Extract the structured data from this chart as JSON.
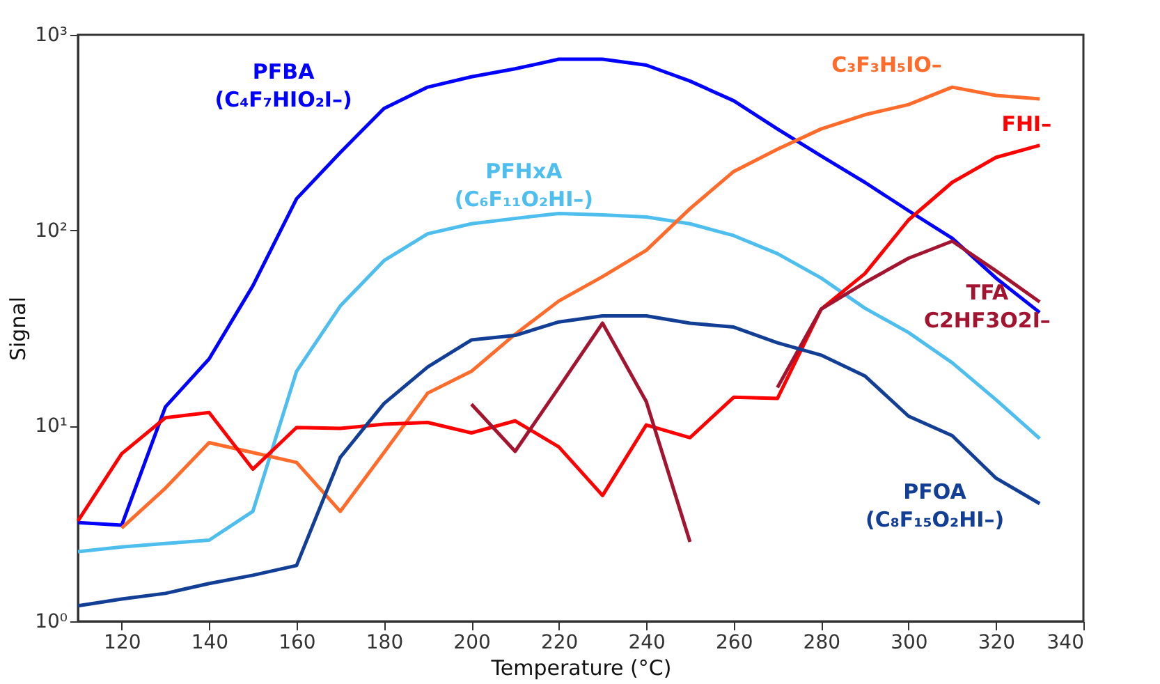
{
  "chart_data": {
    "type": "line",
    "xlabel": "Temperature (°C)",
    "ylabel": "Signal",
    "log": "y",
    "grid": false,
    "line_style": "solid",
    "marker": "none",
    "xlim": [
      110,
      340
    ],
    "xticks": [
      120,
      140,
      160,
      180,
      200,
      220,
      240,
      260,
      280,
      300,
      320,
      340
    ],
    "ylim": [
      1,
      1000
    ],
    "yticks": [
      {
        "value": 1,
        "label": "10⁰"
      },
      {
        "value": 10,
        "label": "10¹"
      },
      {
        "value": 100,
        "label": "10²"
      },
      {
        "value": 1000,
        "label": "10³"
      }
    ],
    "x": [
      110,
      120,
      130,
      140,
      150,
      160,
      170,
      180,
      190,
      200,
      210,
      220,
      230,
      240,
      250,
      260,
      270,
      280,
      290,
      300,
      310,
      320,
      330
    ],
    "series": [
      {
        "name": "PFBA (C₄F₇HIO₂I–)",
        "color": "#0000ff",
        "values": [
          3.2,
          3.1,
          12.5,
          22,
          52,
          145,
          250,
          420,
          540,
          610,
          670,
          750,
          750,
          700,
          580,
          460,
          330,
          240,
          176,
          126,
          91,
          57,
          38
        ]
      },
      {
        "name": "PFHxA (C₆F₁₁O₂HI–)",
        "color": "#4dbeee",
        "values": [
          2.27,
          2.4,
          2.5,
          2.6,
          3.65,
          19,
          41,
          70,
          96,
          108,
          115,
          122,
          120,
          117,
          108,
          94,
          76,
          57,
          40,
          30,
          21,
          13.6,
          8.6
        ]
      },
      {
        "name": "C₃F₃H₅IO–",
        "color": "#ff6b2b",
        "values": [
          null,
          3.0,
          4.8,
          8.2,
          7.3,
          6.5,
          3.65,
          7.3,
          14.7,
          19,
          29.4,
          43.5,
          58,
          79,
          129,
          200,
          260,
          330,
          390,
          440,
          540,
          490,
          470
        ]
      },
      {
        "name": "FHI–",
        "color": "#ff0000",
        "values": [
          3.26,
          7.2,
          11,
          11.7,
          6.0,
          9.8,
          9.7,
          10.2,
          10.4,
          9.2,
          10.6,
          7.8,
          4.4,
          10.1,
          8.7,
          14,
          13.8,
          39.5,
          60,
          113,
          176,
          236,
          272
        ]
      },
      {
        "name": "TFA C2HF3O2I–",
        "color": "#a2142f",
        "values": [
          null,
          null,
          null,
          null,
          null,
          null,
          null,
          null,
          null,
          12.9,
          7.4,
          15.7,
          33.5,
          13.3,
          2.55,
          null,
          15.7,
          39.5,
          54,
          72,
          88,
          62,
          43
        ]
      },
      {
        "name": "PFOA (C₈F₁₅O₂HI–)",
        "color": "#123f95",
        "values": [
          1.2,
          1.3,
          1.39,
          1.56,
          1.72,
          1.93,
          6.9,
          13,
          20,
          27.5,
          29,
          34,
          36.5,
          36.5,
          33.5,
          32,
          26.6,
          23,
          18,
          11.2,
          8.9,
          5.4,
          4.0
        ]
      }
    ]
  }
}
